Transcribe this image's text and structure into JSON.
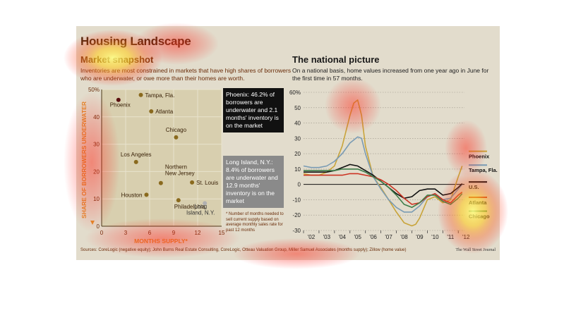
{
  "header": {
    "title": "Housing Landscape",
    "left_subtitle": "Market snapshot",
    "left_description": "Inventories are most constrained in markets that have high shares of borrowers who are underwater, or owe more than their homes are worth.",
    "right_subtitle": "The national picture",
    "right_description": "On a national basis, home values increased from one year ago in June for the first time in 57 months."
  },
  "callouts": {
    "phoenix": "Phoenix: 46.2% of borrowers are underwater and 2.1 months' inventory is on the market",
    "long_island": "Long Island, N.Y.: 8.4% of borrowers are underwater and 12.9 months' inventory is on the market"
  },
  "footnote": "* Number of months needed to sell current supply based on average monthly sales rate for past 12 months",
  "footer": {
    "sources": "Sources: CoreLogic (negative equity); John Burns Real Estate Consulting, CoreLogic, Otteau Valuation Group, Miller Samuel Associates (months supply); Zillow (home value)",
    "credit": "The Wall Street Journal"
  },
  "colors": {
    "background": "#e2dccc",
    "scatter_panel": "#d8cfaf",
    "point": "#8a6a1e",
    "phoenix_point": "#5a1010",
    "phoenix": "#c8a43a",
    "tampa": "#7a9bb4",
    "us": "#111111",
    "atlanta": "#cc3322",
    "chicago": "#3e7d4a",
    "axis_accent": "#e28a2a"
  },
  "chart_data": [
    {
      "type": "scatter",
      "title": "Market snapshot",
      "xlabel": "MONTHS SUPPLY*",
      "ylabel": "SHARE OF BORROWERS UNDERWATER",
      "xlim": [
        0,
        15
      ],
      "ylim": [
        0,
        50
      ],
      "xticks": [
        "0",
        "3",
        "6",
        "9",
        "12",
        "15"
      ],
      "yticks": [
        "0",
        "10",
        "20",
        "30",
        "40",
        "50%"
      ],
      "points": [
        {
          "label": "Phoenix",
          "x": 2.1,
          "y": 46.2
        },
        {
          "label": "Tampa, Fla.",
          "x": 4.9,
          "y": 48.0
        },
        {
          "label": "Atlanta",
          "x": 6.2,
          "y": 42.0
        },
        {
          "label": "Chicago",
          "x": 9.3,
          "y": 32.5
        },
        {
          "label": "Los Angeles",
          "x": 4.3,
          "y": 23.5
        },
        {
          "label": "Northern New Jersey",
          "x": 7.4,
          "y": 15.8
        },
        {
          "label": "St. Louis",
          "x": 11.3,
          "y": 16.0
        },
        {
          "label": "Houston",
          "x": 5.6,
          "y": 11.5
        },
        {
          "label": "Philadelphia",
          "x": 9.6,
          "y": 9.5
        },
        {
          "label": "Long Island, N.Y.",
          "x": 12.9,
          "y": 8.4
        }
      ]
    },
    {
      "type": "line",
      "title": "The national picture",
      "ylim": [
        -30,
        60
      ],
      "yticks": [
        "60%",
        "50",
        "40",
        "30",
        "20",
        "10",
        "0",
        "-10",
        "-20",
        "-30"
      ],
      "xticks": [
        "'02",
        "'03",
        "'04",
        "'05",
        "'06",
        "'07",
        "'08",
        "'09",
        "'10",
        "'11",
        "'12"
      ],
      "xlim": [
        2002,
        2012.4
      ],
      "series": [
        {
          "name": "Phoenix",
          "x": [
            2002,
            2002.5,
            2003,
            2003.5,
            2004,
            2004.5,
            2005,
            2005.25,
            2005.5,
            2005.75,
            2006,
            2006.5,
            2007,
            2007.5,
            2008,
            2008.5,
            2009,
            2009.25,
            2009.5,
            2010,
            2010.5,
            2011,
            2011.5,
            2012,
            2012.25
          ],
          "y": [
            7,
            6,
            6,
            8,
            12,
            25,
            45,
            53,
            55,
            45,
            25,
            5,
            -2,
            -10,
            -18,
            -25,
            -27,
            -26,
            -22,
            -10,
            -8,
            -12,
            -10,
            5,
            12
          ]
        },
        {
          "name": "Tampa, Fla.",
          "x": [
            2002,
            2002.5,
            2003,
            2003.5,
            2004,
            2004.5,
            2005,
            2005.5,
            2005.75,
            2006,
            2006.5,
            2007,
            2007.5,
            2008,
            2008.5,
            2009,
            2009.5,
            2010,
            2010.5,
            2011,
            2011.5,
            2012,
            2012.25
          ],
          "y": [
            12,
            11,
            11,
            12,
            15,
            20,
            27,
            31,
            30,
            20,
            5,
            -3,
            -10,
            -15,
            -18,
            -18,
            -14,
            -8,
            -6,
            -10,
            -9,
            -3,
            0
          ]
        },
        {
          "name": "U.S.",
          "x": [
            2002,
            2002.5,
            2003,
            2003.5,
            2004,
            2004.5,
            2005,
            2005.5,
            2006,
            2006.5,
            2007,
            2007.5,
            2008,
            2008.5,
            2009,
            2009.5,
            2010,
            2010.5,
            2011,
            2011.5,
            2012,
            2012.25
          ],
          "y": [
            8,
            8,
            8,
            8,
            9,
            11,
            13,
            12,
            9,
            6,
            2,
            -2,
            -6,
            -9,
            -8,
            -4,
            -3,
            -3,
            -7,
            -6,
            -2,
            0.5
          ]
        },
        {
          "name": "Atlanta",
          "x": [
            2002,
            2002.5,
            2003,
            2003.5,
            2004,
            2004.5,
            2005,
            2005.5,
            2006,
            2006.5,
            2007,
            2007.5,
            2008,
            2008.5,
            2009,
            2009.5,
            2010,
            2010.5,
            2011,
            2011.5,
            2012,
            2012.25
          ],
          "y": [
            6,
            6,
            6,
            6,
            6,
            6,
            7,
            7,
            6,
            5,
            3,
            0,
            -4,
            -9,
            -13,
            -12,
            -8,
            -6,
            -10,
            -12,
            -7,
            -5
          ]
        },
        {
          "name": "Chicago",
          "x": [
            2002,
            2002.5,
            2003,
            2003.5,
            2004,
            2004.5,
            2005,
            2005.5,
            2006,
            2006.5,
            2007,
            2007.5,
            2008,
            2008.5,
            2009,
            2009.5,
            2010,
            2010.5,
            2011,
            2011.5,
            2012,
            2012.25
          ],
          "y": [
            9,
            9,
            9,
            9,
            9,
            10,
            10,
            10,
            8,
            5,
            2,
            -2,
            -7,
            -13,
            -15,
            -12,
            -7,
            -7,
            -11,
            -13,
            -9,
            -6
          ]
        }
      ]
    }
  ]
}
